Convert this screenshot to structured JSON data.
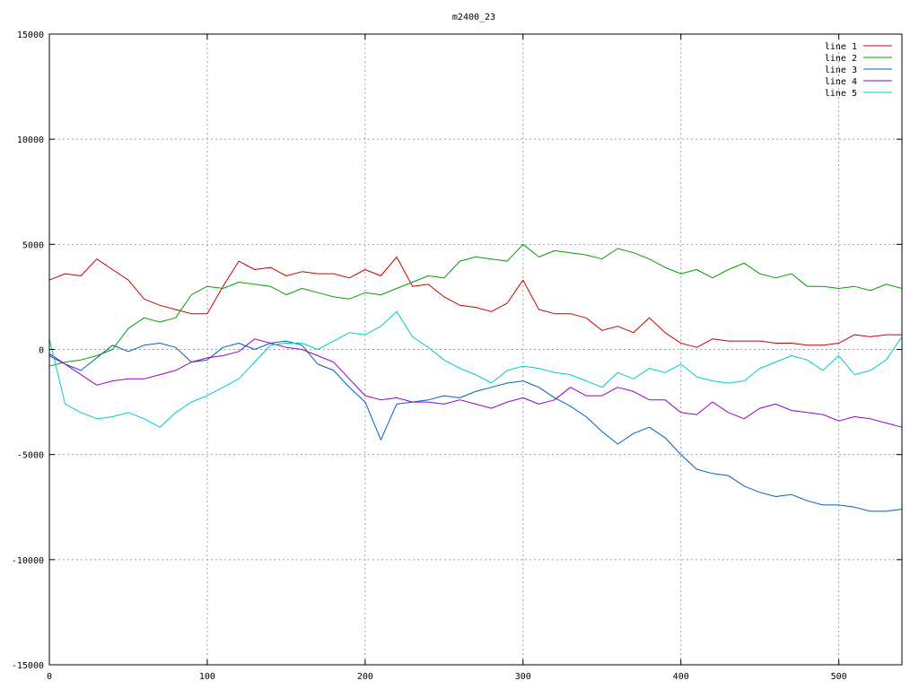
{
  "chart_data": {
    "type": "line",
    "title": "m2400_23",
    "xlabel": "",
    "ylabel": "",
    "xlim": [
      0,
      540
    ],
    "ylim": [
      -15000,
      15000
    ],
    "x_ticks": [
      0,
      100,
      200,
      300,
      400,
      500
    ],
    "y_ticks": [
      -15000,
      -10000,
      -5000,
      0,
      5000,
      10000,
      15000
    ],
    "grid": true,
    "legend_position": "top-right",
    "x": [
      0,
      10,
      20,
      30,
      40,
      50,
      60,
      70,
      80,
      90,
      100,
      110,
      120,
      130,
      140,
      150,
      160,
      170,
      180,
      190,
      200,
      210,
      220,
      230,
      240,
      250,
      260,
      270,
      280,
      290,
      300,
      310,
      320,
      330,
      340,
      350,
      360,
      370,
      380,
      390,
      400,
      410,
      420,
      430,
      440,
      450,
      460,
      470,
      480,
      490,
      500,
      510,
      520,
      530,
      540
    ],
    "series": [
      {
        "name": "line 1",
        "color": "#cc0000",
        "values": [
          3300,
          3600,
          3500,
          4300,
          3800,
          3300,
          2400,
          2100,
          1900,
          1700,
          1700,
          3000,
          4200,
          3800,
          3900,
          3500,
          3700,
          3600,
          3600,
          3400,
          3800,
          3500,
          4400,
          3000,
          3100,
          2500,
          2100,
          2000,
          1800,
          2200,
          3300,
          1900,
          1700,
          1700,
          1500,
          900,
          1100,
          800,
          1500,
          800,
          300,
          100,
          500,
          400,
          400,
          400,
          300,
          300,
          200,
          200,
          300,
          700,
          600,
          700,
          700
        ]
      },
      {
        "name": "line 2",
        "color": "#00a000",
        "values": [
          -800,
          -600,
          -500,
          -300,
          0,
          1000,
          1500,
          1300,
          1500,
          2600,
          3000,
          2900,
          3200,
          3100,
          3000,
          2600,
          2900,
          2700,
          2500,
          2400,
          2700,
          2600,
          2900,
          3200,
          3500,
          3400,
          4200,
          4400,
          4300,
          4200,
          5000,
          4400,
          4700,
          4600,
          4500,
          4300,
          4800,
          4600,
          4300,
          3900,
          3600,
          3800,
          3400,
          3800,
          4100,
          3600,
          3400,
          3600,
          3000,
          3000,
          2900,
          3000,
          2800,
          3100,
          2900
        ]
      },
      {
        "name": "line 3",
        "color": "#0060c0",
        "values": [
          -300,
          -700,
          -1000,
          -400,
          200,
          -100,
          200,
          300,
          100,
          -600,
          -500,
          100,
          300,
          0,
          300,
          400,
          200,
          -700,
          -1000,
          -1800,
          -2500,
          -4300,
          -2600,
          -2500,
          -2400,
          -2200,
          -2300,
          -2000,
          -1800,
          -1600,
          -1500,
          -1800,
          -2300,
          -2700,
          -3200,
          -3900,
          -4500,
          -4000,
          -3700,
          -4200,
          -5000,
          -5700,
          -5900,
          -6000,
          -6500,
          -6800,
          -7000,
          -6900,
          -7200,
          -7400,
          -7400,
          -7500,
          -7700,
          -7700,
          -7600
        ]
      },
      {
        "name": "line 4",
        "color": "#9900cc",
        "values": [
          -200,
          -700,
          -1200,
          -1700,
          -1500,
          -1400,
          -1400,
          -1200,
          -1000,
          -600,
          -400,
          -300,
          -100,
          500,
          300,
          100,
          0,
          -300,
          -600,
          -1400,
          -2200,
          -2400,
          -2300,
          -2500,
          -2500,
          -2600,
          -2400,
          -2600,
          -2800,
          -2500,
          -2300,
          -2600,
          -2400,
          -1800,
          -2200,
          -2200,
          -1800,
          -2000,
          -2400,
          -2400,
          -3000,
          -3100,
          -2500,
          -3000,
          -3300,
          -2800,
          -2600,
          -2900,
          -3000,
          -3100,
          -3400,
          -3200,
          -3300,
          -3500,
          -3700
        ]
      },
      {
        "name": "line 5",
        "color": "#00cccc",
        "values": [
          500,
          -2600,
          -3000,
          -3300,
          -3200,
          -3000,
          -3300,
          -3700,
          -3000,
          -2500,
          -2200,
          -1800,
          -1400,
          -600,
          200,
          300,
          300,
          0,
          400,
          800,
          700,
          1100,
          1800,
          600,
          100,
          -500,
          -900,
          -1200,
          -1600,
          -1000,
          -800,
          -900,
          -1100,
          -1200,
          -1500,
          -1800,
          -1100,
          -1400,
          -900,
          -1100,
          -700,
          -1300,
          -1500,
          -1600,
          -1500,
          -900,
          -600,
          -300,
          -500,
          -1000,
          -300,
          -1200,
          -1000,
          -500,
          600
        ]
      }
    ]
  }
}
